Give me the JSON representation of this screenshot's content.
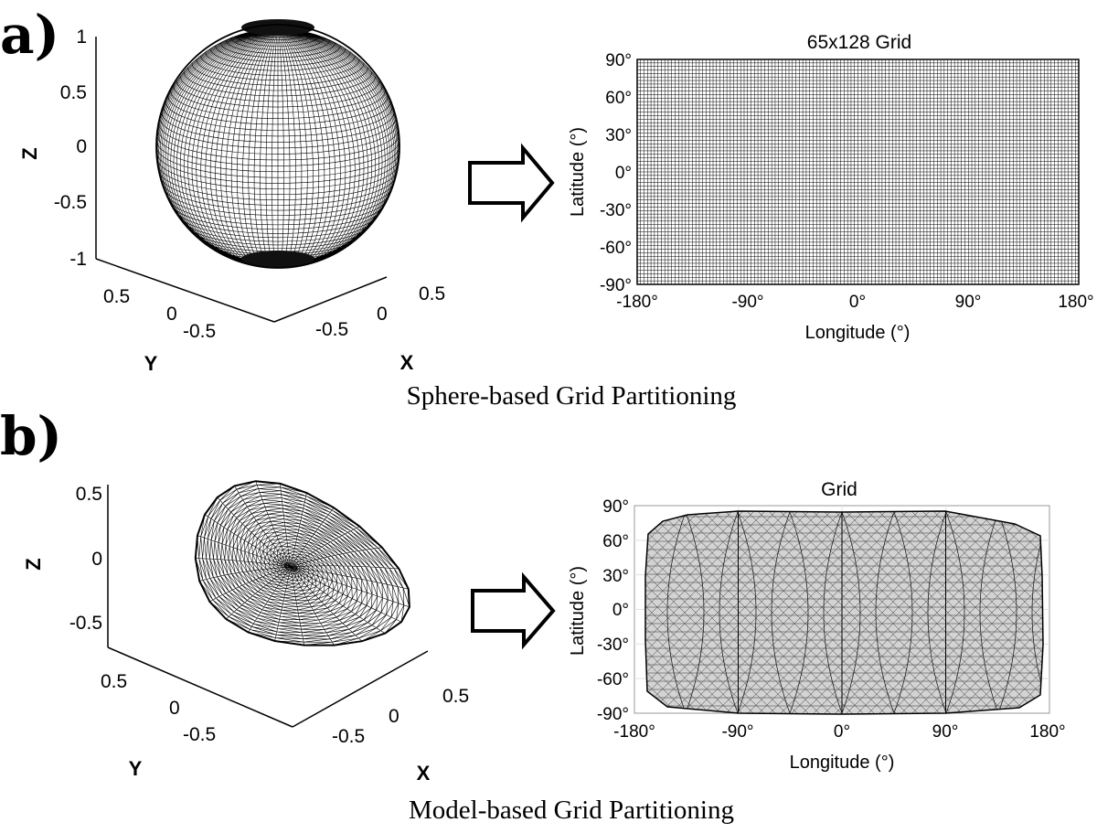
{
  "panel_a": {
    "label": "a)",
    "caption": "Sphere-based Grid Partitioning",
    "sphere": {
      "z_ticks": [
        "1",
        "0.5",
        "0",
        "-0.5",
        "-1"
      ],
      "y_ticks": [
        "0.5",
        "0",
        "-0.5"
      ],
      "x_ticks": [
        "-0.5",
        "0",
        "0.5"
      ],
      "z_label": "Z",
      "y_label": "Y",
      "x_label": "X"
    },
    "map": {
      "title": "65x128  Grid",
      "xlabel": "Longitude (°)",
      "ylabel": "Latitude (°)",
      "x_ticks": [
        "-180°",
        "-90°",
        "0°",
        "90°",
        "180°"
      ],
      "y_ticks": [
        "90°",
        "60°",
        "30°",
        "0°",
        "-30°",
        "-60°",
        "-90°"
      ],
      "grid_rows": 65,
      "grid_cols": 128
    }
  },
  "panel_b": {
    "label": "b)",
    "caption": "Model-based Grid Partitioning",
    "model": {
      "z_ticks": [
        "0.5",
        "0",
        "-0.5"
      ],
      "y_ticks": [
        "0.5",
        "0",
        "-0.5"
      ],
      "x_ticks": [
        "-0.5",
        "0",
        "0.5"
      ],
      "z_label": "Z",
      "y_label": "Y",
      "x_label": "X"
    },
    "map": {
      "title": "Grid",
      "xlabel": "Longitude (°)",
      "ylabel": "Latitude (°)",
      "x_ticks": [
        "-180°",
        "-90°",
        "0°",
        "90°",
        "180°"
      ],
      "y_ticks": [
        "90°",
        "60°",
        "30°",
        "0°",
        "-30°",
        "-60°",
        "-90°"
      ],
      "fill_color": "#d3d3d3"
    }
  }
}
